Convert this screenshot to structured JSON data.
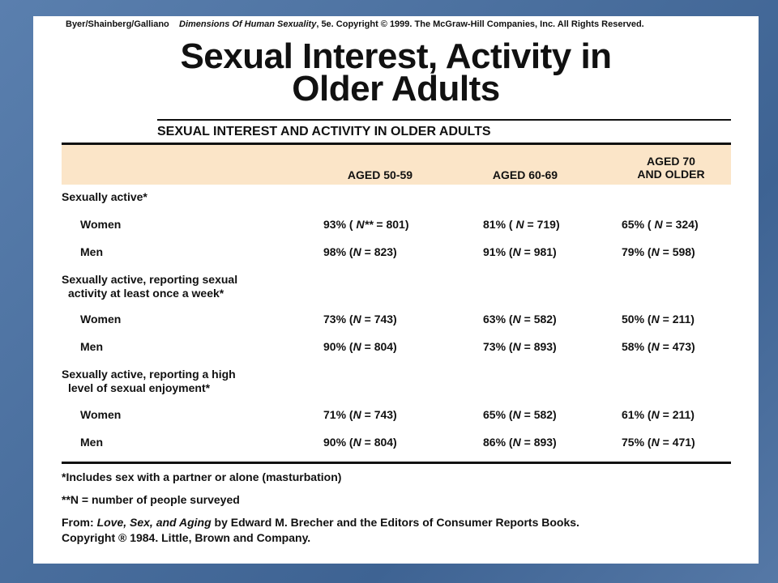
{
  "credit": {
    "authors": "Byer/Shainberg/Galliano",
    "book": "Dimensions Of Human Sexuality",
    "rest": ", 5e. Copyright © 1999. The McGraw-Hill Companies, Inc. All Rights Reserved."
  },
  "title": {
    "line1": "Sexual Interest, Activity in",
    "line2": "Older Adults"
  },
  "table": {
    "caption": "SEXUAL INTEREST AND ACTIVITY IN OLDER ADULTS",
    "columns": [
      {
        "line1": "AGED 50-59",
        "line2": ""
      },
      {
        "line1": "AGED 60-69",
        "line2": ""
      },
      {
        "line1": "AGED 70",
        "line2": "AND OLDER"
      }
    ],
    "sections": [
      {
        "line1": "Sexually active*",
        "line2": "",
        "rows": [
          {
            "label": "Women",
            "cells": [
              {
                "pct": "93%",
                "n_label": "N**",
                "n": "801"
              },
              {
                "pct": "81%",
                "n_label": "N",
                "n": "719"
              },
              {
                "pct": "65%",
                "n_label": "N",
                "n": "324"
              }
            ]
          },
          {
            "label": "Men",
            "cells": [
              {
                "pct": "98%",
                "n_label": "N",
                "n": "823"
              },
              {
                "pct": "91%",
                "n_label": "N",
                "n": "981"
              },
              {
                "pct": "79%",
                "n_label": "N",
                "n": "598"
              }
            ]
          }
        ]
      },
      {
        "line1": "Sexually active, reporting sexual",
        "line2": "activity at least once a week*",
        "rows": [
          {
            "label": "Women",
            "cells": [
              {
                "pct": "73%",
                "n_label": "N",
                "n": "743"
              },
              {
                "pct": "63%",
                "n_label": "N",
                "n": "582"
              },
              {
                "pct": "50%",
                "n_label": "N",
                "n": "211"
              }
            ]
          },
          {
            "label": "Men",
            "cells": [
              {
                "pct": "90%",
                "n_label": "N",
                "n": "804"
              },
              {
                "pct": "73%",
                "n_label": "N",
                "n": "893"
              },
              {
                "pct": "58%",
                "n_label": "N",
                "n": "473"
              }
            ]
          }
        ]
      },
      {
        "line1": "Sexually active, reporting a high",
        "line2": "level of sexual enjoyment*",
        "rows": [
          {
            "label": "Women",
            "cells": [
              {
                "pct": "71%",
                "n_label": "N",
                "n": "743"
              },
              {
                "pct": "65%",
                "n_label": "N",
                "n": "582"
              },
              {
                "pct": "61%",
                "n_label": "N",
                "n": "211"
              }
            ]
          },
          {
            "label": "Men",
            "cells": [
              {
                "pct": "90%",
                "n_label": "N",
                "n": "804"
              },
              {
                "pct": "86%",
                "n_label": "N",
                "n": "893"
              },
              {
                "pct": "75%",
                "n_label": "N",
                "n": "471"
              }
            ]
          }
        ]
      }
    ]
  },
  "notes": {
    "note1": "*Includes sex with a partner or alone (masturbation)",
    "note2": "**N = number of people surveyed",
    "source_prefix": "From: ",
    "source_title": "Love, Sex, and Aging",
    "source_rest": " by Edward M. Brecher and the Editors of Consumer Reports Books.",
    "copyright": "Copyright ® 1984. Little, Brown and Company."
  },
  "colors": {
    "background": "#4a6f9e",
    "header_band": "#fbe5c8"
  }
}
